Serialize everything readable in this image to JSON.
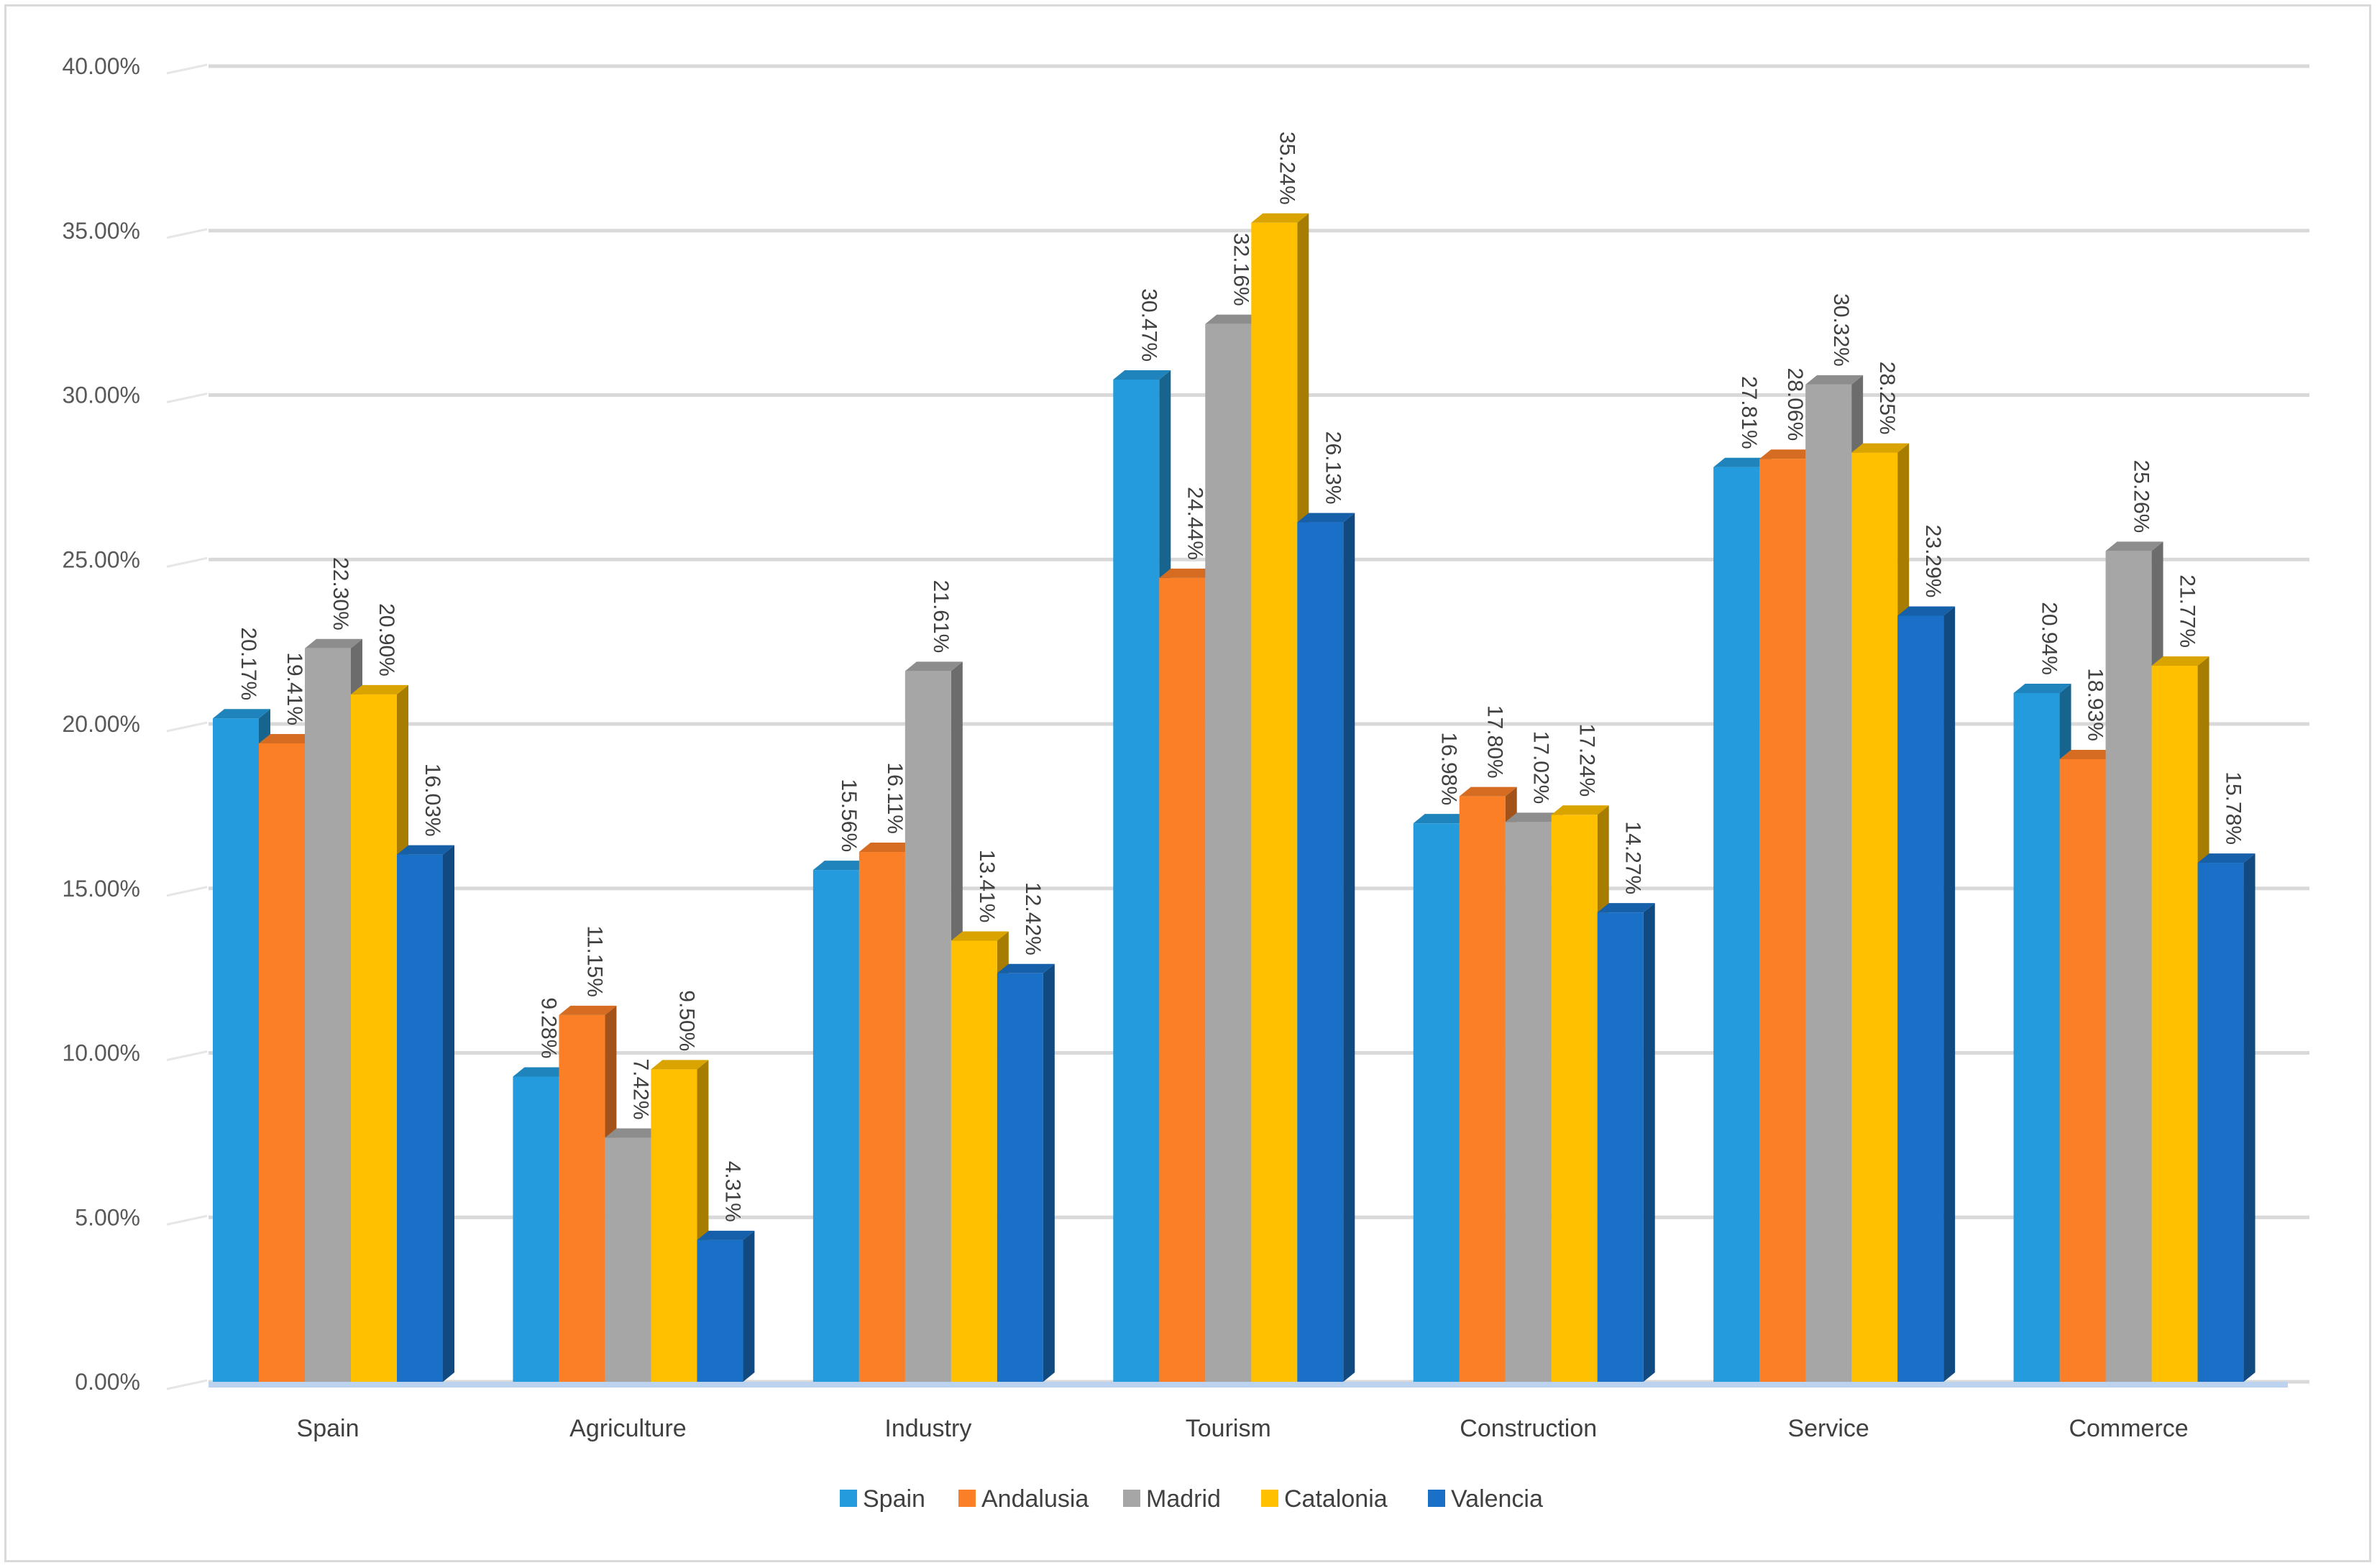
{
  "chart_data": {
    "type": "bar",
    "title": "",
    "xlabel": "",
    "ylabel": "",
    "ylim": [
      0,
      40
    ],
    "yticks": [
      "0.00%",
      "5.00%",
      "10.00%",
      "15.00%",
      "20.00%",
      "25.00%",
      "30.00%",
      "35.00%",
      "40.00%"
    ],
    "grid": true,
    "legend_position": "bottom",
    "categories": [
      "Spain",
      "Agriculture",
      "Industry",
      "Tourism",
      "Construction",
      "Service",
      "Commerce"
    ],
    "series": [
      {
        "name": "Spain",
        "color": "#239bdc",
        "values": [
          20.17,
          9.28,
          15.56,
          30.47,
          16.98,
          27.81,
          20.94
        ],
        "labels": [
          "20.17%",
          "9.28%",
          "15.56%",
          "30.47%",
          "16.98%",
          "27.81%",
          "20.94%"
        ]
      },
      {
        "name": "Andalusia",
        "color": "#fb7f27",
        "values": [
          19.41,
          11.15,
          16.11,
          24.44,
          17.8,
          28.06,
          18.93
        ],
        "labels": [
          "19.41%",
          "11.15%",
          "16.11%",
          "24.44%",
          "17.80%",
          "28.06%",
          "18.93%"
        ]
      },
      {
        "name": "Madrid",
        "color": "#a6a6a6",
        "values": [
          22.3,
          7.42,
          21.61,
          32.16,
          17.02,
          30.32,
          25.26
        ],
        "labels": [
          "22.30%",
          "7.42%",
          "21.61%",
          "32.16%",
          "17.02%",
          "30.32%",
          "25.26%"
        ]
      },
      {
        "name": "Catalonia",
        "color": "#ffc000",
        "values": [
          20.9,
          9.5,
          13.41,
          35.24,
          17.24,
          28.25,
          21.77
        ],
        "labels": [
          "20.90%",
          "9.50%",
          "13.41%",
          "35.24%",
          "17.24%",
          "28.25%",
          "21.77%"
        ]
      },
      {
        "name": "Valencia",
        "color": "#1a70c7",
        "values": [
          16.03,
          4.31,
          12.42,
          26.13,
          14.27,
          23.29,
          15.78
        ],
        "labels": [
          "16.03%",
          "4.31%",
          "12.42%",
          "26.13%",
          "14.27%",
          "23.29%",
          "15.78%"
        ]
      }
    ]
  }
}
